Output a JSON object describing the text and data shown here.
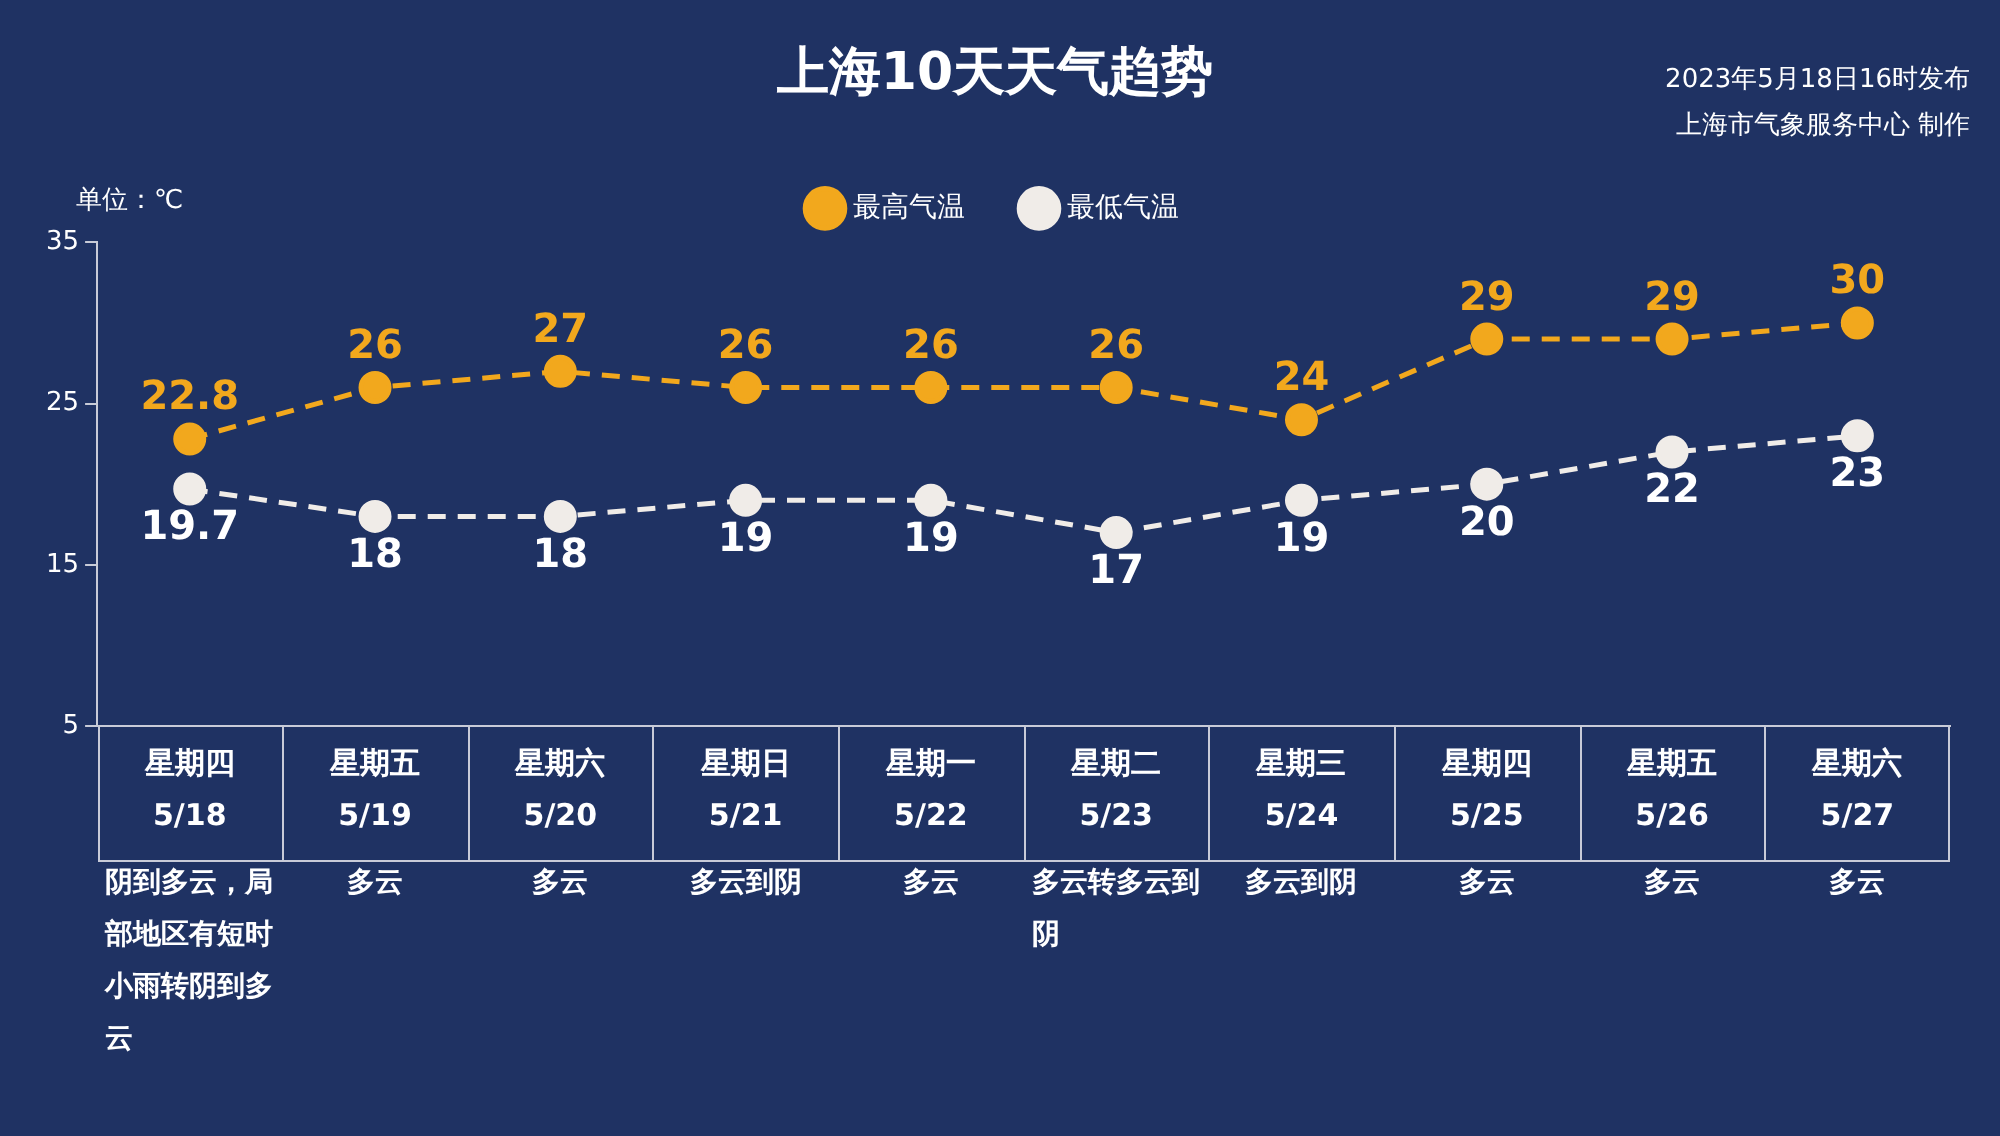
{
  "chart_data": {
    "type": "line",
    "title": "上海10天天气趋势",
    "ylabel": "单位：℃",
    "categories": [
      "星期四\n5/18",
      "星期五\n5/19",
      "星期六\n5/20",
      "星期日\n5/21",
      "星期一\n5/22",
      "星期二\n5/23",
      "星期三\n5/24",
      "星期四\n5/25",
      "星期五\n5/26",
      "星期六\n5/27"
    ],
    "series": [
      {
        "name": "最高气温",
        "color": "#f2a81d",
        "values": [
          22.8,
          26,
          27,
          26,
          26,
          26,
          24,
          29,
          29,
          30
        ]
      },
      {
        "name": "最低气温",
        "color": "#f0ece8",
        "values": [
          19.7,
          18,
          18,
          19,
          19,
          17,
          19,
          20,
          22,
          23
        ]
      }
    ],
    "ylim": [
      5,
      35
    ],
    "yticks": [
      5,
      15,
      25,
      35
    ],
    "grid": false,
    "legend": "top right",
    "marker": "circle",
    "line_style": "dashed",
    "data_labels": true,
    "annotations": [
      "2023年5月18日16时发布",
      "上海市气象服务中心 制作",
      "阴到多云，局部地区有短时小雨转阴到多云",
      "多云",
      "多云",
      "多云到阴",
      "多云",
      "多云转多云到阴",
      "多云到阴",
      "多云",
      "多云",
      "多云"
    ]
  }
}
